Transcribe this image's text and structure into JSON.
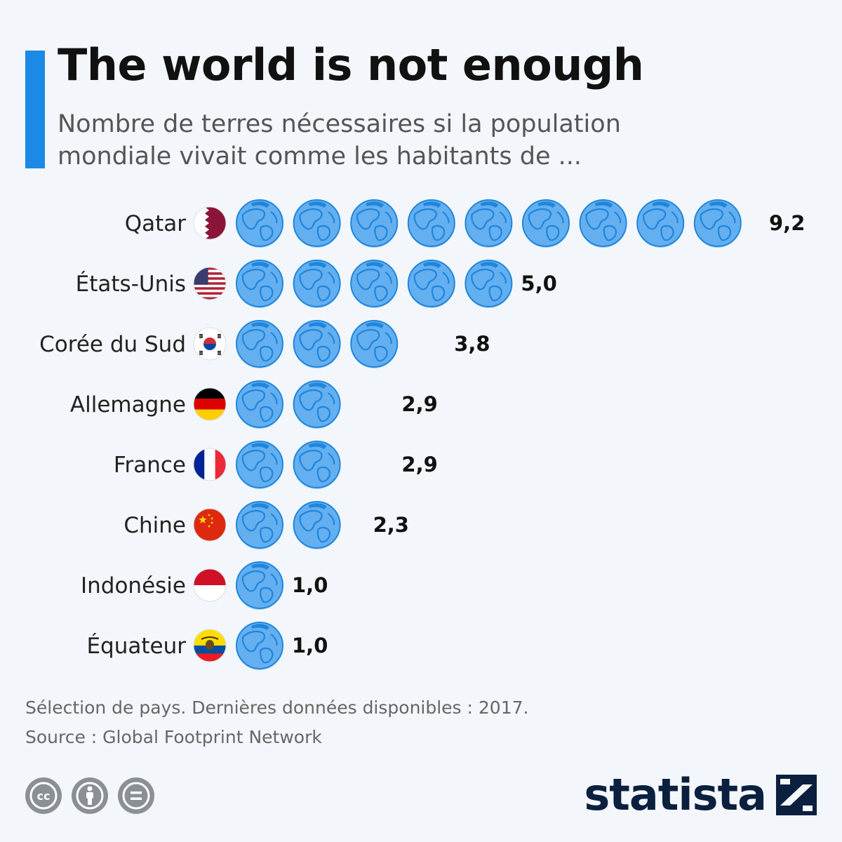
{
  "title": "The world is not enough",
  "subtitle_line1": "Nombre de terres nécessaires si la population",
  "subtitle_line2": "mondiale vivait comme les habitants de ...",
  "footnote": {
    "line1": "Sélection de pays. Dernières données disponibles : 2017.",
    "line2": "Source : Global Footprint Network"
  },
  "brand": "statista",
  "license_icons": [
    "cc-icon",
    "attribution-icon",
    "no-derivatives-icon"
  ],
  "colors": {
    "accent": "#1a8ae6",
    "globe": "#64aff0",
    "globe_dark": "#1f86db",
    "background": "#f3f7fb"
  },
  "chart_data": {
    "type": "bar",
    "categories": [
      "Qatar",
      "États-Unis",
      "Corée du Sud",
      "Allemagne",
      "France",
      "Chine",
      "Indonésie",
      "Équateur"
    ],
    "values": [
      9.2,
      5.0,
      3.8,
      2.9,
      2.9,
      2.3,
      1.0,
      1.0
    ],
    "value_labels": [
      "9,2",
      "5,0",
      "3,8",
      "2,9",
      "2,9",
      "2,3",
      "1,0",
      "1,0"
    ],
    "flags": [
      "qatar",
      "usa",
      "south-korea",
      "germany",
      "france",
      "china",
      "indonesia",
      "ecuador"
    ],
    "unit_icon": "globe-icon"
  }
}
